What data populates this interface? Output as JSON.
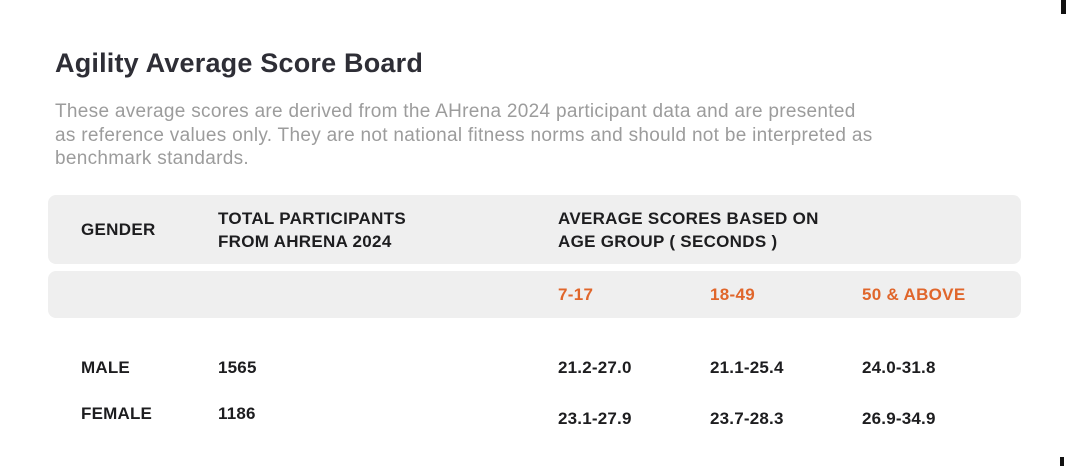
{
  "page": {
    "title": "Agility Average Score Board",
    "description_lines": [
      "These average scores are derived from the AHrena 2024 participant data and are presented",
      "as reference values only. They are not national fitness norms and should not be interpreted as",
      "benchmark standards."
    ]
  },
  "colors": {
    "accent_orange": "#e0662b",
    "header_background": "#efefef",
    "title_text": "#2e2e36",
    "description_text": "#9c9c9c",
    "table_text": "#1d1d1f"
  },
  "table": {
    "headers": {
      "gender": "GENDER",
      "total_participants": "TOTAL PARTICIPANTS FROM AHRENA 2024",
      "average_scores": "AVERAGE SCORES BASED ON AGE GROUP ( SECONDS )"
    },
    "age_groups": [
      "7-17",
      "18-49",
      "50 & ABOVE"
    ],
    "rows": [
      {
        "gender": "MALE",
        "total": "1565",
        "scores": [
          "21.2-27.0",
          "21.1-25.4",
          "24.0-31.8"
        ]
      },
      {
        "gender": "FEMALE",
        "total": "1186",
        "scores": [
          "23.1-27.9",
          "23.7-28.3",
          "26.9-34.9"
        ]
      }
    ]
  }
}
